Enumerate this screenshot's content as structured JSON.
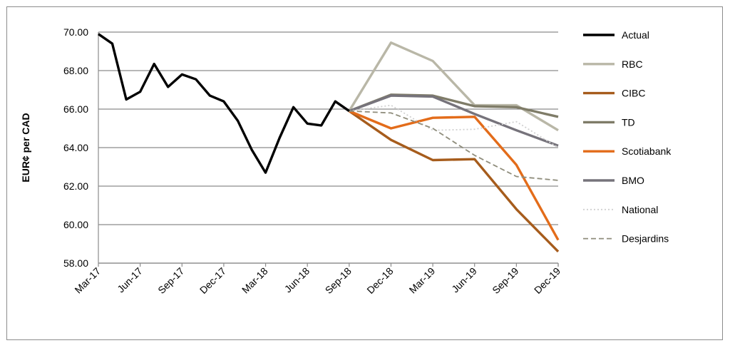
{
  "chart_data": {
    "type": "line",
    "title": "",
    "xlabel": "",
    "ylabel": "EUR¢ per CAD",
    "ylim": [
      58.0,
      70.0
    ],
    "yticks": [
      "58.00",
      "60.00",
      "62.00",
      "64.00",
      "66.00",
      "68.00",
      "70.00"
    ],
    "xticks": [
      "Mar-17",
      "Jun-17",
      "Sep-17",
      "Dec-17",
      "Mar-18",
      "Jun-18",
      "Sep-18",
      "Dec-18",
      "Mar-19",
      "Jun-19",
      "Sep-19",
      "Dec-19"
    ],
    "grid": "horizontal",
    "legend_position": "right",
    "series": [
      {
        "name": "Actual",
        "color": "#000000",
        "dash": "solid",
        "points": [
          [
            "Mar-17",
            69.9
          ],
          [
            "Apr-17",
            69.4
          ],
          [
            "May-17",
            66.5
          ],
          [
            "Jun-17",
            66.9
          ],
          [
            "Jul-17",
            68.35
          ],
          [
            "Aug-17",
            67.15
          ],
          [
            "Sep-17",
            67.8
          ],
          [
            "Oct-17",
            67.55
          ],
          [
            "Nov-17",
            66.7
          ],
          [
            "Dec-17",
            66.4
          ],
          [
            "Jan-18",
            65.4
          ],
          [
            "Feb-18",
            63.9
          ],
          [
            "Mar-18",
            62.7
          ],
          [
            "Apr-18",
            64.5
          ],
          [
            "May-18",
            66.1
          ],
          [
            "Jun-18",
            65.25
          ],
          [
            "Jul-18",
            65.15
          ],
          [
            "Aug-18",
            66.4
          ],
          [
            "Sep-18",
            65.9
          ]
        ]
      },
      {
        "name": "RBC",
        "color": "#b9b7a7",
        "dash": "solid",
        "points": [
          [
            "Sep-18",
            65.9
          ],
          [
            "Dec-18",
            69.45
          ],
          [
            "Mar-19",
            68.5
          ],
          [
            "Jun-19",
            66.2
          ],
          [
            "Sep-19",
            66.2
          ],
          [
            "Dec-19",
            64.9
          ]
        ]
      },
      {
        "name": "CIBC",
        "color": "#a65c1c",
        "dash": "solid",
        "points": [
          [
            "Sep-18",
            65.9
          ],
          [
            "Dec-18",
            64.4
          ],
          [
            "Mar-19",
            63.35
          ],
          [
            "Jun-19",
            63.4
          ],
          [
            "Sep-19",
            60.8
          ],
          [
            "Dec-19",
            58.6
          ]
        ]
      },
      {
        "name": "TD",
        "color": "#7f7c68",
        "dash": "solid",
        "points": [
          [
            "Sep-18",
            65.9
          ],
          [
            "Dec-18",
            66.75
          ],
          [
            "Mar-19",
            66.7
          ],
          [
            "Jun-19",
            66.15
          ],
          [
            "Sep-19",
            66.1
          ],
          [
            "Dec-19",
            65.6
          ]
        ]
      },
      {
        "name": "Scotiabank",
        "color": "#e36c1a",
        "dash": "solid",
        "points": [
          [
            "Sep-18",
            65.9
          ],
          [
            "Dec-18",
            65.0
          ],
          [
            "Mar-19",
            65.55
          ],
          [
            "Jun-19",
            65.6
          ],
          [
            "Sep-19",
            63.1
          ],
          [
            "Dec-19",
            59.2
          ]
        ]
      },
      {
        "name": "BMO",
        "color": "#76737b",
        "dash": "solid",
        "points": [
          [
            "Sep-18",
            65.9
          ],
          [
            "Dec-18",
            66.7
          ],
          [
            "Mar-19",
            66.65
          ],
          [
            "Jun-19",
            65.75
          ],
          [
            "Sep-19",
            64.9
          ],
          [
            "Dec-19",
            64.1
          ]
        ]
      },
      {
        "name": "National",
        "color": "#d0d0d0",
        "dash": "dotted",
        "points": [
          [
            "Sep-18",
            65.9
          ],
          [
            "Dec-18",
            66.2
          ],
          [
            "Mar-19",
            64.9
          ],
          [
            "Jun-19",
            64.95
          ],
          [
            "Sep-19",
            65.35
          ],
          [
            "Dec-19",
            64.0
          ]
        ]
      },
      {
        "name": "Desjardins",
        "color": "#8f8d7c",
        "dash": "dashed",
        "points": [
          [
            "Sep-18",
            65.9
          ],
          [
            "Dec-18",
            65.8
          ],
          [
            "Mar-19",
            65.0
          ],
          [
            "Jun-19",
            63.6
          ],
          [
            "Sep-19",
            62.5
          ],
          [
            "Dec-19",
            62.3
          ]
        ]
      }
    ]
  }
}
